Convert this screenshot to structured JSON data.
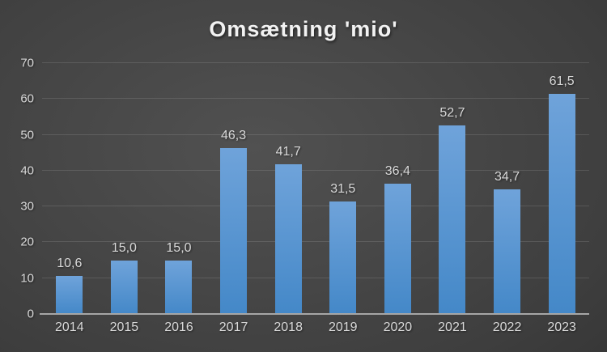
{
  "chart_data": {
    "type": "bar",
    "title": "Omsætning 'mio'",
    "categories": [
      "2014",
      "2015",
      "2016",
      "2017",
      "2018",
      "2019",
      "2020",
      "2021",
      "2022",
      "2023"
    ],
    "values": [
      10.6,
      15.0,
      15.0,
      46.3,
      41.7,
      31.5,
      36.4,
      52.7,
      34.7,
      61.5
    ],
    "value_labels": [
      "10,6",
      "15,0",
      "15,0",
      "46,3",
      "41,7",
      "31,5",
      "36,4",
      "52,7",
      "34,7",
      "61,5"
    ],
    "xlabel": "",
    "ylabel": "",
    "ylim": [
      0,
      70
    ],
    "yticks": [
      0,
      10,
      20,
      30,
      40,
      50,
      60,
      70
    ],
    "grid": true,
    "legend": false,
    "series_name": "Omsætning",
    "colors": {
      "bar_gradient_top": "#6FA3DA",
      "bar_gradient_bottom": "#4488C8",
      "background_center": "#515151",
      "background_edge": "#262626",
      "gridline": "rgba(255,255,255,0.12)",
      "axis_line": "#A6A6A6",
      "label_text": "#D9D9D9",
      "title_text": "#F2F2F2"
    }
  }
}
